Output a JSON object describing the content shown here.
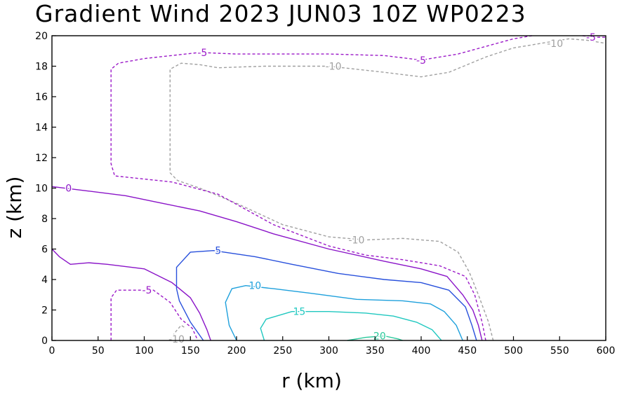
{
  "chart_data": {
    "type": "contour",
    "title": "Gradient Wind 2023 JUN03 10Z  WP0223",
    "xlabel": "r (km)",
    "ylabel": "z (km)",
    "xlim": [
      0,
      600
    ],
    "ylim": [
      0,
      20
    ],
    "x_ticks": [
      0,
      50,
      100,
      150,
      200,
      250,
      300,
      350,
      400,
      450,
      500,
      550,
      600
    ],
    "y_ticks": [
      0,
      2,
      4,
      6,
      8,
      10,
      12,
      14,
      16,
      18,
      20
    ],
    "grid": false,
    "contours": [
      {
        "level": -10,
        "color": "#a0a0a0",
        "dashed": true,
        "paths": [
          [
            [
              128,
              0
            ],
            [
              133,
              0.5
            ],
            [
              140,
              1.0
            ],
            [
              145,
              0.8
            ]
          ],
          [
            [
              478,
              0
            ],
            [
              473,
              1.2
            ],
            [
              462,
              3.0
            ],
            [
              452,
              4.5
            ],
            [
              440,
              5.8
            ],
            [
              420,
              6.5
            ],
            [
              380,
              6.7
            ],
            [
              340,
              6.6
            ],
            [
              300,
              6.8
            ],
            [
              250,
              7.6
            ],
            [
              200,
              9.0
            ],
            [
              160,
              10.0
            ],
            [
              136,
              10.5
            ],
            [
              128,
              11.0
            ],
            [
              128,
              13.5
            ],
            [
              128,
              17.8
            ],
            [
              140,
              18.2
            ],
            [
              160,
              18.1
            ],
            [
              180,
              17.9
            ],
            [
              230,
              18.0
            ],
            [
              300,
              18.0
            ],
            [
              360,
              17.6
            ],
            [
              400,
              17.3
            ],
            [
              430,
              17.6
            ],
            [
              470,
              18.6
            ],
            [
              500,
              19.2
            ],
            [
              540,
              19.6
            ],
            [
              560,
              19.8
            ],
            [
              580,
              19.7
            ],
            [
              600,
              19.5
            ]
          ]
        ]
      },
      {
        "level": -5,
        "color": "#9b19c8",
        "dashed": true,
        "paths": [
          [
            [
              64,
              0
            ],
            [
              64,
              0.8
            ],
            [
              64,
              2.8
            ],
            [
              70,
              3.3
            ],
            [
              110,
              3.3
            ],
            [
              128,
              2.5
            ],
            [
              140,
              1.4
            ],
            [
              152,
              0.8
            ],
            [
              158,
              0
            ]
          ],
          [
            [
              470,
              0
            ],
            [
              466,
              1.2
            ],
            [
              458,
              3.0
            ],
            [
              448,
              4.2
            ],
            [
              420,
              4.9
            ],
            [
              380,
              5.3
            ],
            [
              340,
              5.6
            ],
            [
              300,
              6.2
            ],
            [
              240,
              7.6
            ],
            [
              180,
              9.6
            ],
            [
              130,
              10.4
            ],
            [
              68,
              10.8
            ],
            [
              64,
              11.6
            ],
            [
              64,
              17.8
            ],
            [
              72,
              18.2
            ],
            [
              100,
              18.5
            ],
            [
              160,
              18.9
            ],
            [
              200,
              18.8
            ],
            [
              250,
              18.8
            ],
            [
              300,
              18.8
            ],
            [
              360,
              18.7
            ],
            [
              400,
              18.4
            ],
            [
              440,
              18.8
            ],
            [
              500,
              19.8
            ],
            [
              520,
              20
            ]
          ],
          [
            [
              575,
              20
            ],
            [
              590,
              19.9
            ],
            [
              600,
              19.9
            ]
          ]
        ]
      },
      {
        "level": 0,
        "color": "#8a14c8",
        "dashed": false,
        "paths": [
          [
            [
              0,
              10.1
            ],
            [
              40,
              9.8
            ],
            [
              80,
              9.5
            ],
            [
              120,
              9.0
            ],
            [
              160,
              8.5
            ],
            [
              200,
              7.8
            ],
            [
              240,
              7.0
            ],
            [
              300,
              6.0
            ],
            [
              360,
              5.2
            ],
            [
              400,
              4.7
            ],
            [
              428,
              4.2
            ],
            [
              445,
              3.0
            ],
            [
              456,
              2.0
            ],
            [
              462,
              1.0
            ],
            [
              466,
              0
            ]
          ],
          [
            [
              0,
              6.0
            ],
            [
              8,
              5.5
            ],
            [
              20,
              5.0
            ],
            [
              40,
              5.1
            ],
            [
              60,
              5.0
            ],
            [
              100,
              4.7
            ],
            [
              130,
              3.8
            ],
            [
              150,
              2.8
            ],
            [
              160,
              1.8
            ],
            [
              168,
              0.7
            ],
            [
              172,
              0
            ]
          ]
        ]
      },
      {
        "level": 5,
        "color": "#2850dc",
        "dashed": false,
        "paths": [
          [
            [
              164,
              0
            ],
            [
              150,
              1.2
            ],
            [
              138,
              2.6
            ],
            [
              135,
              3.4
            ],
            [
              135,
              4.8
            ],
            [
              150,
              5.8
            ],
            [
              175,
              5.9
            ],
            [
              220,
              5.5
            ],
            [
              260,
              5.0
            ],
            [
              310,
              4.4
            ],
            [
              360,
              4.0
            ],
            [
              400,
              3.8
            ],
            [
              430,
              3.3
            ],
            [
              448,
              2.2
            ],
            [
              455,
              1.0
            ],
            [
              460,
              0
            ]
          ]
        ]
      },
      {
        "level": 10,
        "color": "#1ea0dc",
        "dashed": false,
        "paths": [
          [
            [
              200,
              0
            ],
            [
              192,
              1.0
            ],
            [
              188,
              2.5
            ],
            [
              195,
              3.4
            ],
            [
              210,
              3.6
            ],
            [
              240,
              3.4
            ],
            [
              280,
              3.1
            ],
            [
              330,
              2.7
            ],
            [
              380,
              2.6
            ],
            [
              410,
              2.4
            ],
            [
              425,
              1.9
            ],
            [
              438,
              1.0
            ],
            [
              445,
              0
            ]
          ]
        ]
      },
      {
        "level": 15,
        "color": "#20c8c0",
        "dashed": false,
        "paths": [
          [
            [
              230,
              0
            ],
            [
              226,
              0.8
            ],
            [
              232,
              1.4
            ],
            [
              260,
              1.9
            ],
            [
              300,
              1.9
            ],
            [
              340,
              1.8
            ],
            [
              370,
              1.6
            ],
            [
              395,
              1.2
            ],
            [
              412,
              0.7
            ],
            [
              422,
              0
            ]
          ]
        ]
      },
      {
        "level": 20,
        "color": "#28c89a",
        "dashed": false,
        "paths": [
          [
            [
              320,
              0
            ],
            [
              340,
              0.2
            ],
            [
              360,
              0.3
            ],
            [
              375,
              0.1
            ],
            [
              380,
              0
            ]
          ]
        ]
      }
    ],
    "contour_labels": [
      {
        "text": "-10",
        "x": 135,
        "y": 0.1,
        "color": "#a0a0a0"
      },
      {
        "text": "-10",
        "x": 330,
        "y": 6.6,
        "color": "#a0a0a0"
      },
      {
        "text": "-10",
        "x": 305,
        "y": 18.0,
        "color": "#a0a0a0"
      },
      {
        "text": "-10",
        "x": 545,
        "y": 19.5,
        "color": "#a0a0a0"
      },
      {
        "text": "-5",
        "x": 103,
        "y": 3.3,
        "color": "#9b19c8"
      },
      {
        "text": "-5",
        "x": 163,
        "y": 18.9,
        "color": "#9b19c8"
      },
      {
        "text": "-5",
        "x": 400,
        "y": 18.4,
        "color": "#9b19c8"
      },
      {
        "text": "-5",
        "x": 584,
        "y": 19.9,
        "color": "#9b19c8"
      },
      {
        "text": "0",
        "x": 18,
        "y": 10.0,
        "color": "#8a14c8"
      },
      {
        "text": "5",
        "x": 180,
        "y": 5.9,
        "color": "#2850dc"
      },
      {
        "text": "10",
        "x": 220,
        "y": 3.6,
        "color": "#1ea0dc"
      },
      {
        "text": "15",
        "x": 268,
        "y": 1.9,
        "color": "#20c8c0"
      },
      {
        "text": "20",
        "x": 355,
        "y": 0.3,
        "color": "#28c89a"
      }
    ]
  }
}
